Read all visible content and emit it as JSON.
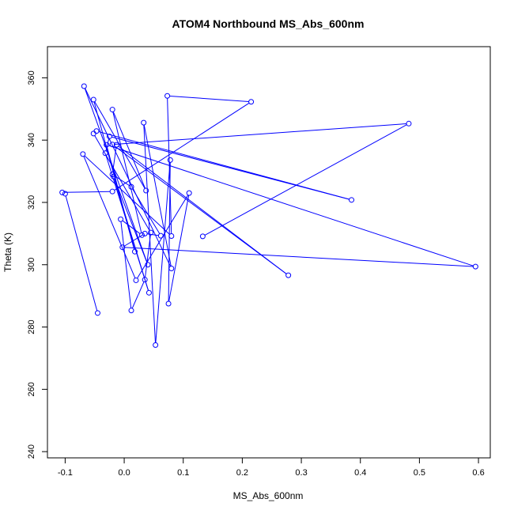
{
  "chart_data": {
    "type": "line",
    "title": "ATOM4 Northbound MS_Abs_600nm",
    "xlabel": "MS_Abs_600nm",
    "ylabel": "Theta (K)",
    "xlim": [
      -0.13,
      0.62
    ],
    "ylim": [
      238,
      370
    ],
    "xticks": [
      -0.1,
      0.0,
      0.1,
      0.2,
      0.3,
      0.4,
      0.5,
      0.6
    ],
    "xtick_labels": [
      "-0.1",
      "0.0",
      "0.1",
      "0.2",
      "0.3",
      "0.4",
      "0.5",
      "0.6"
    ],
    "yticks": [
      240,
      260,
      280,
      300,
      320,
      340,
      360
    ],
    "ytick_labels": [
      "240",
      "260",
      "280",
      "300",
      "320",
      "340",
      "360"
    ],
    "grid": false,
    "legend": "none",
    "color": "#0000ff",
    "series": [
      {
        "points": [
          [
            -0.045,
            284.5
          ],
          [
            -0.1,
            322.8
          ],
          [
            -0.105,
            323.2
          ],
          [
            -0.02,
            323.5
          ],
          [
            0.215,
            352.3
          ],
          [
            0.073,
            354.2
          ],
          [
            0.08,
            309.2
          ],
          [
            -0.07,
            335.5
          ],
          [
            0.02,
            295.0
          ],
          [
            0.11,
            323.0
          ],
          [
            0.075,
            287.5
          ],
          [
            0.078,
            333.6
          ],
          [
            0.053,
            274.2
          ],
          [
            0.033,
            345.6
          ],
          [
            0.08,
            298.8
          ],
          [
            -0.068,
            357.3
          ],
          [
            0.04,
            300.0
          ],
          [
            -0.018,
            328.3
          ],
          [
            0.042,
            291.0
          ],
          [
            -0.032,
            335.8
          ],
          [
            -0.025,
            341.2
          ],
          [
            0.385,
            320.8
          ],
          [
            -0.047,
            342.9
          ],
          [
            -0.052,
            342.1
          ],
          [
            0.045,
            310.3
          ],
          [
            0.035,
            295.2
          ],
          [
            0.012,
            285.3
          ],
          [
            -0.006,
            314.6
          ],
          [
            0.03,
            309.5
          ],
          [
            -0.02,
            349.8
          ],
          [
            0.037,
            323.8
          ],
          [
            -0.052,
            353.0
          ],
          [
            0.018,
            304.2
          ],
          [
            -0.03,
            338.5
          ],
          [
            0.595,
            299.4
          ],
          [
            -0.003,
            305.6
          ],
          [
            0.035,
            310.0
          ],
          [
            0.062,
            309.3
          ],
          [
            0.012,
            325.0
          ],
          [
            -0.02,
            329.0
          ],
          [
            -0.013,
            338.5
          ],
          [
            0.278,
            296.6
          ],
          [
            -0.02,
            338.6
          ],
          [
            0.482,
            345.3
          ],
          [
            0.133,
            309.1
          ]
        ]
      }
    ]
  }
}
